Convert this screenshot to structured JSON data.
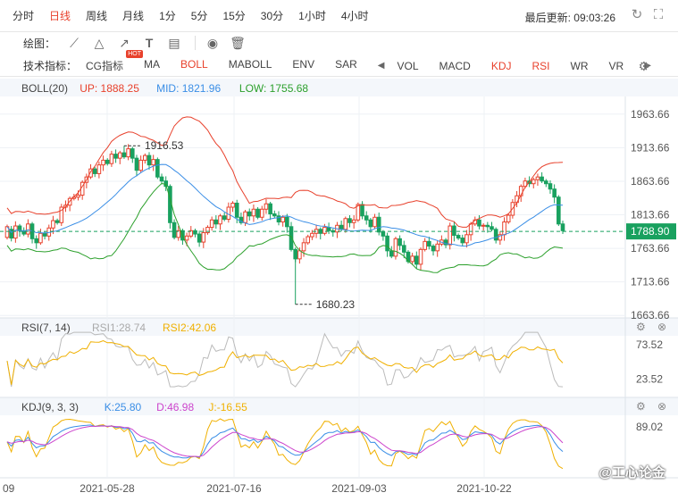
{
  "periods": [
    "分时",
    "日线",
    "周线",
    "月线",
    "1分",
    "5分",
    "15分",
    "30分",
    "1小时",
    "4小时"
  ],
  "active_period": "日线",
  "last_update": "最后更新: 09:03:26",
  "draw_label": "绘图：",
  "indicator_label": "技术指标：",
  "main_indicators": [
    "CG指标",
    "MA",
    "BOLL",
    "MABOLL",
    "ENV",
    "SAR"
  ],
  "hot_badge": "HOT",
  "sub_indicators": [
    "VOL",
    "MACD",
    "KDJ",
    "RSI",
    "WR",
    "VR"
  ],
  "active_main": "BOLL",
  "active_subs": [
    "KDJ",
    "RSI"
  ],
  "icons": {
    "refresh": "refresh-icon",
    "fullscreen": "fullscreen-icon",
    "settings": "gear-icon",
    "eye": "eye-icon",
    "trash": "trash-icon",
    "close": "close-icon"
  },
  "colors": {
    "up": "#e8412c",
    "down": "#19a15f",
    "upper_band": "#e8412c",
    "mid_band": "#3a8ee6",
    "lower_band": "#2ca02c",
    "rsi1": "#bbbbbb",
    "rsi2": "#f0b000",
    "k": "#3a8ee6",
    "d": "#cc44cc",
    "j": "#f0b000",
    "current_price": "#19a15f"
  },
  "boll": {
    "title": "BOLL(20)",
    "up": "UP: 1888.25",
    "mid": "MID: 1821.96",
    "low": "LOW: 1755.68"
  },
  "rsi": {
    "title": "RSI(7, 14)",
    "rsi1": "RSI1:28.74",
    "rsi2": "RSI2:42.06"
  },
  "kdj": {
    "title": "KDJ(9, 3, 3)",
    "k": "K:25.80",
    "d": "D:46.98",
    "j": "J:-16.55"
  },
  "watermark": "@工心论金",
  "chart_data": {
    "type": "candlestick",
    "price_axis": {
      "ticks": [
        1963.66,
        1913.66,
        1863.66,
        1813.66,
        1763.66,
        1713.66,
        1663.66
      ],
      "range": [
        1660,
        1990
      ]
    },
    "current_price": "1788.90",
    "annotations": [
      {
        "date": "2021-06-01",
        "value": 1916.53,
        "label": "1916.53",
        "kind": "high"
      },
      {
        "date": "2021-08-09",
        "value": 1680.23,
        "label": "1680.23",
        "kind": "low"
      }
    ],
    "x_ticks": [
      "09",
      "2021-05-28",
      "2021-07-16",
      "2021-09-03",
      "2021-10-22"
    ],
    "candles_approx": [
      [
        1780,
        1796
      ],
      [
        1792,
        1779
      ],
      [
        1779,
        1797
      ],
      [
        1797,
        1790
      ],
      [
        1790,
        1785
      ],
      [
        1785,
        1800
      ],
      [
        1800,
        1778
      ],
      [
        1778,
        1772
      ],
      [
        1772,
        1786
      ],
      [
        1786,
        1782
      ],
      [
        1782,
        1794
      ],
      [
        1794,
        1805
      ],
      [
        1805,
        1802
      ],
      [
        1802,
        1825
      ],
      [
        1825,
        1828
      ],
      [
        1828,
        1838
      ],
      [
        1838,
        1840
      ],
      [
        1840,
        1843
      ],
      [
        1843,
        1862
      ],
      [
        1862,
        1870
      ],
      [
        1870,
        1882
      ],
      [
        1882,
        1875
      ],
      [
        1875,
        1888
      ],
      [
        1888,
        1895
      ],
      [
        1895,
        1890
      ],
      [
        1890,
        1904
      ],
      [
        1904,
        1898
      ],
      [
        1898,
        1906
      ],
      [
        1906,
        1900
      ],
      [
        1900,
        1912
      ],
      [
        1912,
        1898
      ],
      [
        1898,
        1880
      ],
      [
        1880,
        1895
      ],
      [
        1895,
        1902
      ],
      [
        1902,
        1888
      ],
      [
        1888,
        1896
      ],
      [
        1896,
        1870
      ],
      [
        1870,
        1864
      ],
      [
        1864,
        1856
      ],
      [
        1856,
        1802
      ],
      [
        1802,
        1780
      ],
      [
        1780,
        1790
      ],
      [
        1790,
        1776
      ],
      [
        1776,
        1782
      ],
      [
        1782,
        1790
      ],
      [
        1790,
        1785
      ],
      [
        1785,
        1773
      ],
      [
        1773,
        1787
      ],
      [
        1787,
        1795
      ],
      [
        1795,
        1806
      ],
      [
        1806,
        1800
      ],
      [
        1800,
        1812
      ],
      [
        1812,
        1807
      ],
      [
        1807,
        1825
      ],
      [
        1825,
        1831
      ],
      [
        1831,
        1810
      ],
      [
        1810,
        1802
      ],
      [
        1802,
        1818
      ],
      [
        1818,
        1812
      ],
      [
        1812,
        1822
      ],
      [
        1822,
        1810
      ],
      [
        1810,
        1822
      ],
      [
        1822,
        1830
      ],
      [
        1830,
        1815
      ],
      [
        1815,
        1812
      ],
      [
        1812,
        1803
      ],
      [
        1803,
        1810
      ],
      [
        1810,
        1796
      ],
      [
        1796,
        1762
      ],
      [
        1762,
        1748
      ],
      [
        1748,
        1760
      ],
      [
        1760,
        1772
      ],
      [
        1772,
        1781
      ],
      [
        1781,
        1786
      ],
      [
        1786,
        1792
      ],
      [
        1792,
        1786
      ],
      [
        1786,
        1795
      ],
      [
        1795,
        1790
      ],
      [
        1790,
        1788
      ],
      [
        1788,
        1798
      ],
      [
        1798,
        1792
      ],
      [
        1792,
        1808
      ],
      [
        1808,
        1802
      ],
      [
        1802,
        1806
      ],
      [
        1806,
        1829
      ],
      [
        1829,
        1812
      ],
      [
        1812,
        1806
      ],
      [
        1806,
        1796
      ],
      [
        1796,
        1810
      ],
      [
        1810,
        1788
      ],
      [
        1788,
        1782
      ],
      [
        1782,
        1760
      ],
      [
        1760,
        1752
      ],
      [
        1752,
        1778
      ],
      [
        1778,
        1768
      ],
      [
        1768,
        1758
      ],
      [
        1758,
        1744
      ],
      [
        1744,
        1752
      ],
      [
        1752,
        1740
      ],
      [
        1740,
        1762
      ],
      [
        1762,
        1774
      ],
      [
        1774,
        1767
      ],
      [
        1767,
        1760
      ],
      [
        1760,
        1770
      ],
      [
        1770,
        1776
      ],
      [
        1776,
        1769
      ],
      [
        1769,
        1797
      ],
      [
        1797,
        1783
      ],
      [
        1783,
        1779
      ],
      [
        1779,
        1772
      ],
      [
        1772,
        1784
      ],
      [
        1784,
        1800
      ],
      [
        1800,
        1806
      ],
      [
        1806,
        1797
      ],
      [
        1797,
        1798
      ],
      [
        1798,
        1796
      ],
      [
        1796,
        1792
      ],
      [
        1792,
        1776
      ],
      [
        1776,
        1784
      ],
      [
        1784,
        1803
      ],
      [
        1803,
        1813
      ],
      [
        1813,
        1832
      ],
      [
        1832,
        1842
      ],
      [
        1842,
        1856
      ],
      [
        1856,
        1864
      ],
      [
        1864,
        1860
      ],
      [
        1860,
        1866
      ],
      [
        1866,
        1870
      ],
      [
        1870,
        1864
      ],
      [
        1864,
        1860
      ],
      [
        1860,
        1852
      ],
      [
        1852,
        1840
      ],
      [
        1840,
        1800
      ],
      [
        1800,
        1790
      ]
    ]
  }
}
